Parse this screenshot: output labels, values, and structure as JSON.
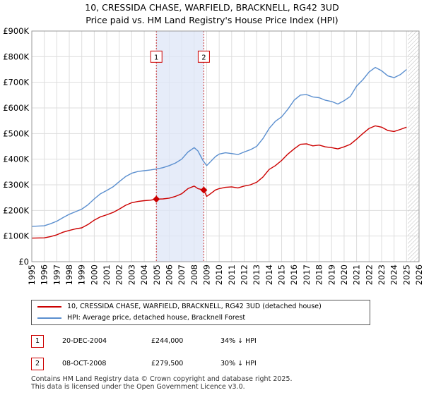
{
  "chart_data": {
    "type": "line",
    "title": "10, CRESSIDA CHASE, WARFIELD, BRACKNELL, RG42 3UD",
    "subtitle": "Price paid vs. HM Land Registry's House Price Index (HPI)",
    "xlabel": "",
    "ylabel": "",
    "xlim": [
      1995,
      2026
    ],
    "ylim": [
      0,
      900000
    ],
    "y_ticks": [
      0,
      100000,
      200000,
      300000,
      400000,
      500000,
      600000,
      700000,
      800000,
      900000
    ],
    "y_tick_labels": [
      "£0",
      "£100K",
      "£200K",
      "£300K",
      "£400K",
      "£500K",
      "£600K",
      "£700K",
      "£800K",
      "£900K"
    ],
    "x_ticks": [
      1995,
      1996,
      1997,
      1998,
      1999,
      2000,
      2001,
      2002,
      2003,
      2004,
      2005,
      2006,
      2007,
      2008,
      2009,
      2010,
      2011,
      2012,
      2013,
      2014,
      2015,
      2016,
      2017,
      2018,
      2019,
      2020,
      2021,
      2022,
      2023,
      2024,
      2025,
      2026
    ],
    "x_tick_labels": [
      "1995",
      "1996",
      "1997",
      "1998",
      "1999",
      "2000",
      "2001",
      "2002",
      "2003",
      "2004",
      "2005",
      "2006",
      "2007",
      "2008",
      "2009",
      "2010",
      "2011",
      "2012",
      "2013",
      "2014",
      "2015",
      "2016",
      "2017",
      "2018",
      "2019",
      "2020",
      "2021",
      "2022",
      "2023",
      "2024",
      "2025",
      "2026"
    ],
    "grid": true,
    "shaded_region": {
      "x_start": 2004.97,
      "x_end": 2008.77
    },
    "future_hatch_start": 2025.1,
    "series": [
      {
        "name": "10, CRESSIDA CHASE, WARFIELD, BRACKNELL, RG42 3UD (detached house)",
        "color": "#cc0000",
        "x": [
          1995.0,
          1996.0,
          1996.5,
          1997.0,
          1997.5,
          1998.0,
          1998.5,
          1999.0,
          1999.5,
          2000.0,
          2000.5,
          2001.0,
          2001.5,
          2002.0,
          2002.5,
          2003.0,
          2003.5,
          2004.0,
          2004.5,
          2004.97,
          2005.5,
          2006.0,
          2006.5,
          2007.0,
          2007.5,
          2008.0,
          2008.3,
          2008.77,
          2009.0,
          2009.3,
          2009.7,
          2010.0,
          2010.5,
          2011.0,
          2011.5,
          2012.0,
          2012.5,
          2013.0,
          2013.5,
          2014.0,
          2014.5,
          2015.0,
          2015.5,
          2016.0,
          2016.5,
          2017.0,
          2017.5,
          2018.0,
          2018.5,
          2019.0,
          2019.5,
          2020.0,
          2020.5,
          2021.0,
          2021.5,
          2022.0,
          2022.5,
          2023.0,
          2023.5,
          2024.0,
          2024.5,
          2025.0
        ],
        "values": [
          92000,
          93000,
          98000,
          105000,
          115000,
          122000,
          128000,
          132000,
          145000,
          162000,
          175000,
          183000,
          192000,
          205000,
          220000,
          230000,
          235000,
          238000,
          240000,
          244000,
          245000,
          248000,
          255000,
          265000,
          285000,
          295000,
          285000,
          279500,
          255000,
          265000,
          280000,
          285000,
          290000,
          292000,
          288000,
          295000,
          300000,
          310000,
          330000,
          360000,
          375000,
          395000,
          420000,
          440000,
          458000,
          460000,
          452000,
          455000,
          448000,
          445000,
          440000,
          448000,
          458000,
          478000,
          500000,
          520000,
          530000,
          525000,
          512000,
          508000,
          516000,
          525000
        ]
      },
      {
        "name": "HPI: Average price, detached house, Bracknell Forest",
        "color": "#5b8fcf",
        "x": [
          1995.0,
          1996.0,
          1996.5,
          1997.0,
          1997.5,
          1998.0,
          1998.5,
          1999.0,
          1999.5,
          2000.0,
          2000.5,
          2001.0,
          2001.5,
          2002.0,
          2002.5,
          2003.0,
          2003.5,
          2004.0,
          2004.5,
          2005.0,
          2005.5,
          2006.0,
          2006.5,
          2007.0,
          2007.5,
          2008.0,
          2008.3,
          2008.7,
          2009.0,
          2009.3,
          2009.7,
          2010.0,
          2010.5,
          2011.0,
          2011.5,
          2012.0,
          2012.5,
          2013.0,
          2013.5,
          2014.0,
          2014.5,
          2015.0,
          2015.5,
          2016.0,
          2016.5,
          2017.0,
          2017.5,
          2018.0,
          2018.5,
          2019.0,
          2019.5,
          2020.0,
          2020.5,
          2021.0,
          2021.5,
          2022.0,
          2022.5,
          2023.0,
          2023.5,
          2024.0,
          2024.5,
          2025.0
        ],
        "values": [
          138000,
          140000,
          148000,
          158000,
          172000,
          185000,
          195000,
          205000,
          222000,
          245000,
          265000,
          278000,
          292000,
          312000,
          332000,
          345000,
          352000,
          355000,
          358000,
          362000,
          367000,
          375000,
          385000,
          400000,
          428000,
          445000,
          432000,
          395000,
          375000,
          390000,
          410000,
          420000,
          425000,
          422000,
          418000,
          428000,
          437000,
          450000,
          480000,
          520000,
          548000,
          565000,
          595000,
          630000,
          650000,
          652000,
          643000,
          640000,
          630000,
          625000,
          615000,
          628000,
          645000,
          685000,
          710000,
          740000,
          758000,
          745000,
          725000,
          718000,
          730000,
          750000
        ]
      }
    ],
    "markers": [
      {
        "label": "1",
        "x": 2004.97,
        "value": 244000,
        "box_value": 800000
      },
      {
        "label": "2",
        "x": 2008.77,
        "value": 279500,
        "box_value": 800000
      }
    ]
  },
  "legend": {
    "items": [
      {
        "label": "10, CRESSIDA CHASE, WARFIELD, BRACKNELL, RG42 3UD (detached house)",
        "color": "#cc0000"
      },
      {
        "label": "HPI: Average price, detached house, Bracknell Forest",
        "color": "#5b8fcf"
      }
    ]
  },
  "sales": [
    {
      "num": "1",
      "date": "20-DEC-2004",
      "price": "£244,000",
      "hpi": "34% ↓ HPI"
    },
    {
      "num": "2",
      "date": "08-OCT-2008",
      "price": "£279,500",
      "hpi": "30% ↓ HPI"
    }
  ],
  "footer": {
    "line1": "Contains HM Land Registry data © Crown copyright and database right 2025.",
    "line2": "This data is licensed under the Open Government Licence v3.0."
  }
}
